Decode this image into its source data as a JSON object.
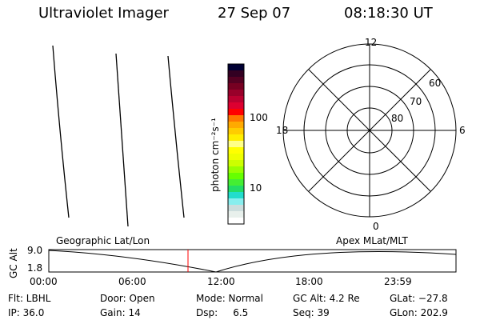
{
  "header": {
    "instrument": "Ultraviolet Imager",
    "date": "27 Sep 07",
    "time": "08:18:30 UT"
  },
  "colorbar": {
    "label": "photon cm⁻²s⁻¹",
    "ticks": [
      "100",
      "10"
    ],
    "colors": [
      "#000033",
      "#330022",
      "#550022",
      "#770022",
      "#99002a",
      "#bb0030",
      "#dd0030",
      "#ff0000",
      "#ff7700",
      "#ffaa00",
      "#ffcc00",
      "#ffee00",
      "#ffff88",
      "#ffff00",
      "#eeff00",
      "#ccff00",
      "#99ff00",
      "#66ff00",
      "#44ee33",
      "#22dd66",
      "#22ddcc",
      "#88eeee",
      "#ccdddd",
      "#e8f0ec",
      "#ffffff"
    ]
  },
  "polar": {
    "mlt_labels": [
      "12",
      "6",
      "0",
      "18"
    ],
    "lat_labels": [
      "60",
      "70",
      "80"
    ]
  },
  "timeline": {
    "left_label": "Geographic Lat/Lon",
    "right_label": "Apex MLat/MLT",
    "ylabel": "GC Alt",
    "yticks": [
      "9.0",
      "1.8"
    ],
    "xticks": [
      "00:00",
      "06:00",
      "12:00",
      "18:00",
      "23:59"
    ],
    "current_time_color": "#ff0000"
  },
  "status": {
    "row1": [
      "Flt: LBHL",
      "Door: Open",
      "Mode: Normal",
      "GC Alt: 4.2 Re",
      "GLat: −27.8"
    ],
    "row2": [
      "IP: 36.0",
      "Gain: 14",
      "Dsp:     6.5",
      "Seq: 39",
      "GLon: 202.9"
    ]
  }
}
